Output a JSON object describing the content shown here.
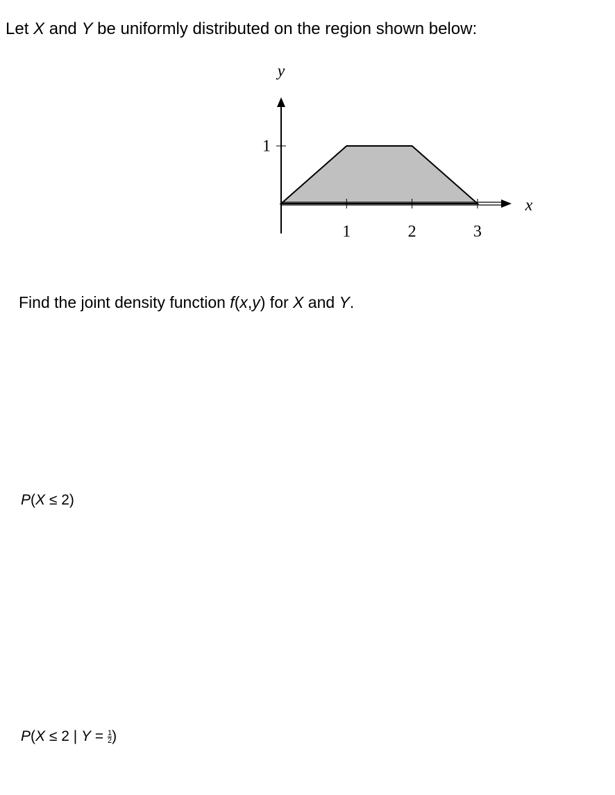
{
  "intro": [
    "Let ",
    "X",
    " and ",
    "Y",
    " be uniformly distributed on the region shown below:"
  ],
  "diagram": {
    "x_label": "x",
    "y_label": "y",
    "xticks": [
      1,
      2,
      3
    ],
    "yticks": [
      1
    ],
    "region": [
      [
        0,
        0
      ],
      [
        1,
        1
      ],
      [
        2,
        1
      ],
      [
        3,
        0
      ]
    ],
    "region_color": "#c0c0c0"
  },
  "question_1": [
    "Find the joint density function ",
    "f",
    "(",
    "x",
    ",",
    "y",
    ")",
    " for ",
    "X",
    " and ",
    "Y",
    "."
  ],
  "question_2": [
    "P",
    "(",
    "X",
    " ≤ 2)"
  ],
  "question_3": [
    "P",
    "(",
    "X",
    " ≤ 2 | ",
    "Y",
    " = ",
    "1",
    "2",
    ")"
  ]
}
